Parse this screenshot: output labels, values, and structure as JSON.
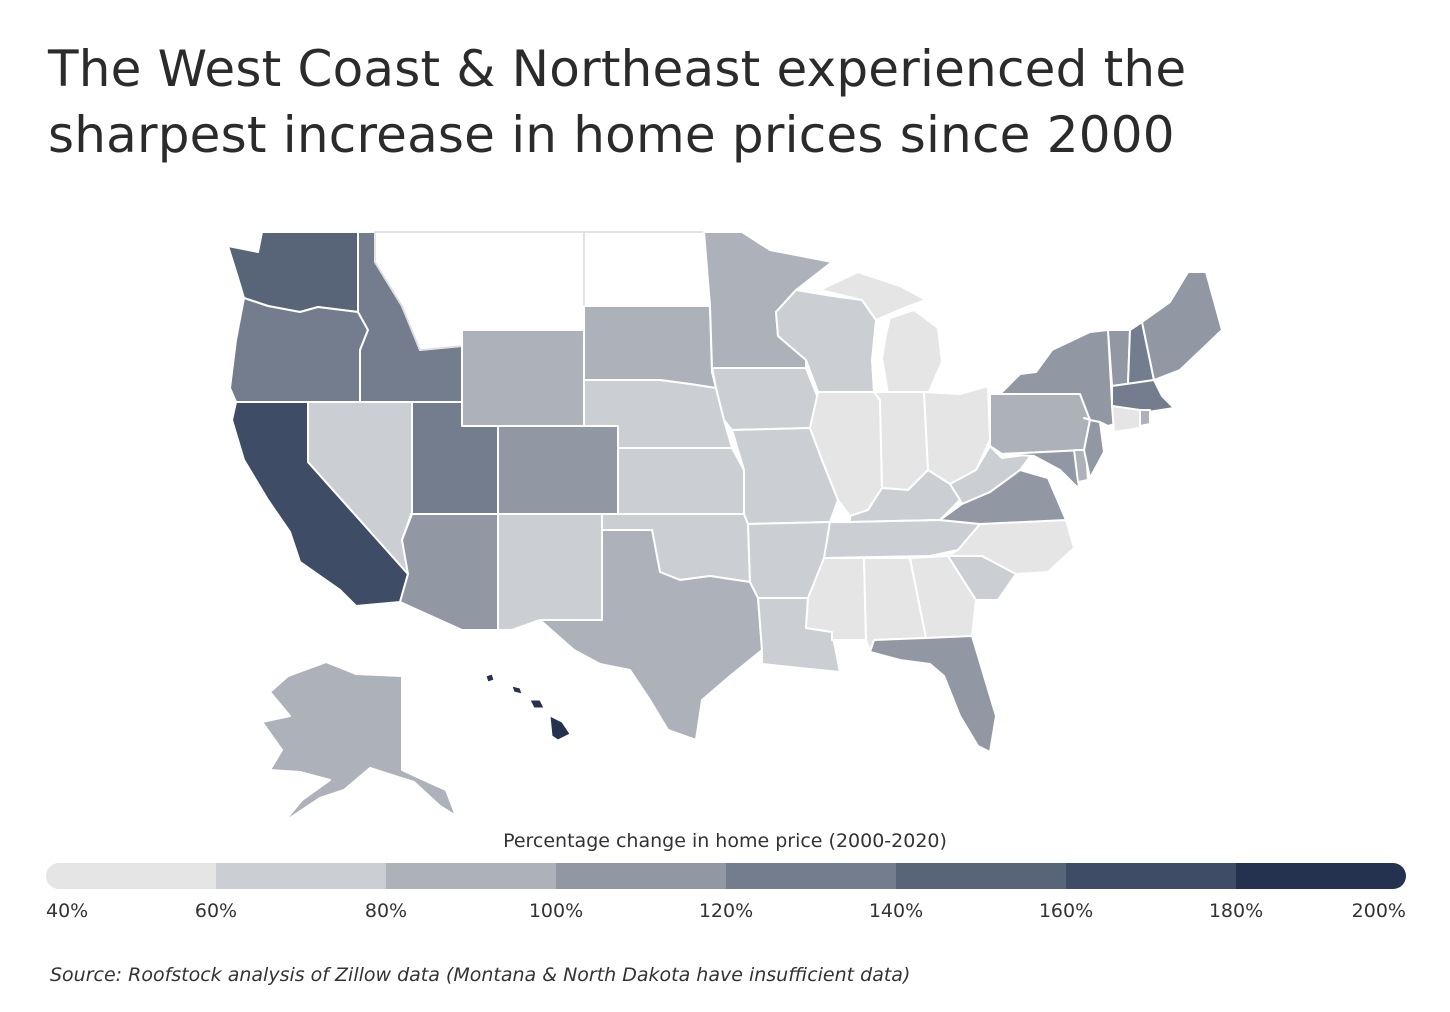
{
  "title": "The West Coast & Northeast experienced the sharpest increase in home prices since 2000",
  "legend": {
    "title": "Percentage change in home price (2000-2020)",
    "ticks": [
      "40%",
      "60%",
      "80%",
      "100%",
      "120%",
      "140%",
      "160%",
      "180%",
      "200%"
    ],
    "colors": [
      "#e5e5e6",
      "#cbced3",
      "#adb1b9",
      "#9198a4",
      "#737d8d",
      "#586478",
      "#3f4c66",
      "#24324f"
    ]
  },
  "no_data_color": "#ffffff",
  "map_data": {
    "states_by_bin": {
      "40-60": [
        "North Carolina",
        "Georgia",
        "Alabama",
        "Mississippi",
        "Illinois",
        "Indiana",
        "Ohio",
        "Michigan",
        "Connecticut"
      ],
      "60-80": [
        "Nevada",
        "New Mexico",
        "Nebraska",
        "Kansas",
        "Oklahoma",
        "Iowa",
        "Missouri",
        "Arkansas",
        "Louisiana",
        "Wisconsin",
        "Kentucky",
        "Tennessee",
        "South Carolina",
        "West Virginia"
      ],
      "80-100": [
        "Wyoming",
        "South Dakota",
        "Minnesota",
        "Texas",
        "Pennsylvania",
        "Alaska",
        "Rhode Island",
        "Delaware"
      ],
      "100-120": [
        "Colorado",
        "Arizona",
        "Florida",
        "Virginia",
        "New York",
        "Maine",
        "Vermont",
        "Maryland",
        "New Jersey"
      ],
      "120-140": [
        "Idaho",
        "Utah",
        "Oregon",
        "New Hampshire",
        "Massachusetts"
      ],
      "140-160": [
        "Washington"
      ],
      "160-180": [
        "California"
      ],
      "180-200": [
        "Hawaii"
      ]
    },
    "insufficient_data": [
      "Montana",
      "North Dakota"
    ]
  },
  "source": "Source: Roofstock analysis of Zillow data (Montana & North Dakota have insufficient data)"
}
